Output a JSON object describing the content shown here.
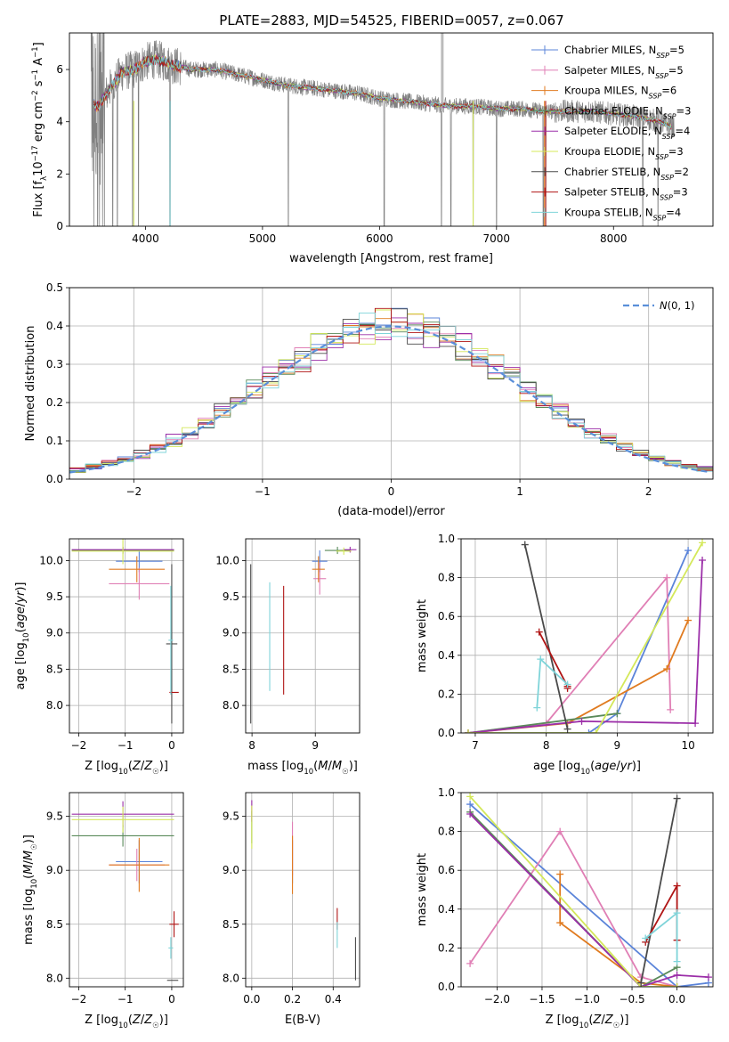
{
  "title": "PLATE=2883, MJD=54525, FIBERID=0057, z=0.067",
  "colors": {
    "chabrier_miles": "#5b84d9",
    "salpeter_miles": "#e07fb5",
    "kroupa_miles": "#e07b20",
    "chabrier_elodie": "#5a8a5a",
    "salpeter_elodie": "#9b2ea8",
    "kroupa_elodie": "#d4e85a",
    "chabrier_stelib": "#4a4a4a",
    "salpeter_stelib": "#b01515",
    "kroupa_stelib": "#7fd4d9",
    "data": "#808080",
    "normal": "#5a8fd9",
    "grid": "#b0b0b0"
  },
  "chart_data": [
    {
      "id": "spectrum",
      "type": "line",
      "title": "PLATE=2883, MJD=54525, FIBERID=0057, z=0.067",
      "xlabel": "wavelength [Angstrom, rest frame]",
      "ylabel": "Flux [f_λ10^-17 erg cm^-2 s^-1 A^-1]",
      "xlim": [
        3350,
        8850
      ],
      "ylim": [
        0,
        7.4
      ],
      "xticks": [
        4000,
        5000,
        6000,
        7000,
        8000
      ],
      "yticks": [
        0,
        2,
        4,
        6
      ],
      "grid": false,
      "legend_position": "top-right",
      "legend": [
        "Chabrier MILES, N_SSP=5",
        "Salpeter MILES, N_SSP=5",
        "Kroupa MILES, N_SSP=6",
        "Chabrier ELODIE, N_SSP=3",
        "Salpeter ELODIE, N_SSP=4",
        "Kroupa ELODIE, N_SSP=3",
        "Chabrier STELIB, N_SSP=2",
        "Salpeter STELIB, N_SSP=3",
        "Kroupa STELIB, N_SSP=4"
      ],
      "continuum": [
        [
          3600,
          4.6
        ],
        [
          3700,
          5.3
        ],
        [
          3800,
          5.9
        ],
        [
          3900,
          6.0
        ],
        [
          4000,
          6.3
        ],
        [
          4100,
          6.4
        ],
        [
          4200,
          6.2
        ],
        [
          4400,
          6.0
        ],
        [
          4600,
          6.0
        ],
        [
          4800,
          5.8
        ],
        [
          5000,
          5.6
        ],
        [
          5200,
          5.4
        ],
        [
          5400,
          5.3
        ],
        [
          5600,
          5.2
        ],
        [
          5800,
          5.1
        ],
        [
          6000,
          4.9
        ],
        [
          6200,
          4.8
        ],
        [
          6400,
          4.7
        ],
        [
          6600,
          4.6
        ],
        [
          6800,
          4.6
        ],
        [
          7000,
          4.5
        ],
        [
          7200,
          4.5
        ],
        [
          7400,
          4.4
        ],
        [
          7600,
          4.4
        ],
        [
          7800,
          4.4
        ],
        [
          8000,
          4.3
        ],
        [
          8200,
          4.2
        ],
        [
          8400,
          4.0
        ],
        [
          8500,
          3.8
        ]
      ]
    },
    {
      "id": "residuals",
      "type": "histogram",
      "xlabel": "(data-model)/error",
      "ylabel": "Normed distribution",
      "xlim": [
        -2.5,
        2.5
      ],
      "ylim": [
        0,
        0.5
      ],
      "xticks": [
        -2,
        -1,
        0,
        1,
        2
      ],
      "yticks": [
        0.0,
        0.1,
        0.2,
        0.3,
        0.4,
        0.5
      ],
      "grid": true,
      "legend_position": "top-right",
      "legend": [
        "N(0,1)"
      ]
    },
    {
      "id": "age_vs_Z",
      "type": "errorbar",
      "xlabel": "Z [log10(Z/Z☉)]",
      "ylabel": "age [log10(age/yr)]",
      "xlim": [
        -2.2,
        0.25
      ],
      "ylim": [
        7.62,
        10.3
      ],
      "xticks": [
        -2,
        -1,
        0
      ],
      "yticks": [
        8.0,
        8.5,
        9.0,
        9.5,
        10.0
      ],
      "grid": true,
      "points": [
        {
          "series": "chabrier_miles",
          "x": -0.7,
          "y": 9.99,
          "xerr": 0.5,
          "yerr": 0.15
        },
        {
          "series": "salpeter_miles",
          "x": -0.7,
          "y": 9.68,
          "xerr": 0.65,
          "yerr": 0.22
        },
        {
          "series": "kroupa_miles",
          "x": -0.75,
          "y": 9.88,
          "xerr": 0.6,
          "yerr": 0.18
        },
        {
          "series": "chabrier_elodie",
          "x": -1.05,
          "y": 10.14,
          "xerr": 1.1,
          "yerr": 0.05
        },
        {
          "series": "salpeter_elodie",
          "x": -1.05,
          "y": 10.15,
          "xerr": 1.1,
          "yerr": 0.04
        },
        {
          "series": "kroupa_elodie",
          "x": -1.05,
          "y": 10.13,
          "xerr": 1.1,
          "yerr": 0.18
        },
        {
          "series": "chabrier_stelib",
          "x": 0.0,
          "y": 8.85,
          "xerr": 0.12,
          "yerr": 1.1
        },
        {
          "series": "salpeter_stelib",
          "x": 0.05,
          "y": 8.18,
          "xerr": 0.1,
          "yerr": 0.0
        },
        {
          "series": "kroupa_stelib",
          "x": -0.02,
          "y": 8.9,
          "xerr": 0.05,
          "yerr": 0.75
        }
      ]
    },
    {
      "id": "age_vs_mass",
      "type": "errorbar",
      "xlabel": "mass [log10(M/M☉)]",
      "xlim": [
        7.9,
        9.7
      ],
      "ylim": [
        7.62,
        10.3
      ],
      "xticks": [
        8,
        9
      ],
      "yticks": [
        8.0,
        8.5,
        9.0,
        9.5,
        10.0
      ],
      "grid": true,
      "points": [
        {
          "series": "chabrier_miles",
          "x": 9.07,
          "y": 9.99,
          "xerr": 0.12,
          "yerr": 0.15
        },
        {
          "series": "salpeter_miles",
          "x": 9.07,
          "y": 9.75,
          "xerr": 0.1,
          "yerr": 0.22
        },
        {
          "series": "kroupa_miles",
          "x": 9.05,
          "y": 9.88,
          "xerr": 0.1,
          "yerr": 0.18
        },
        {
          "series": "chabrier_elodie",
          "x": 9.35,
          "y": 10.14,
          "xerr": 0.2,
          "yerr": 0.05
        },
        {
          "series": "salpeter_elodie",
          "x": 9.55,
          "y": 10.15,
          "xerr": 0.1,
          "yerr": 0.04
        },
        {
          "series": "kroupa_elodie",
          "x": 9.45,
          "y": 10.13,
          "xerr": 0.12,
          "yerr": 0.05
        },
        {
          "series": "chabrier_stelib",
          "x": 7.98,
          "y": 8.85,
          "xerr": 0.0,
          "yerr": 1.1
        },
        {
          "series": "salpeter_stelib",
          "x": 8.5,
          "y": 8.9,
          "xerr": 0.0,
          "yerr": 0.75
        },
        {
          "series": "kroupa_stelib",
          "x": 8.28,
          "y": 8.95,
          "xerr": 0.0,
          "yerr": 0.75
        }
      ]
    },
    {
      "id": "weight_vs_age",
      "type": "line",
      "xlabel": "age [log10(age/yr)]",
      "ylabel": "mass weight",
      "xlim": [
        6.8,
        10.35
      ],
      "ylim": [
        0,
        1.0
      ],
      "xticks": [
        7,
        8,
        9,
        10
      ],
      "yticks": [
        0.0,
        0.2,
        0.4,
        0.6,
        0.8,
        1.0
      ],
      "grid": true,
      "series": [
        {
          "key": "chabrier_miles",
          "x": [
            6.9,
            8.6,
            9.0,
            10.0
          ],
          "y": [
            0.0,
            0.0,
            0.1,
            0.94
          ]
        },
        {
          "key": "salpeter_miles",
          "x": [
            6.9,
            8.0,
            9.7,
            9.75
          ],
          "y": [
            0.0,
            0.05,
            0.8,
            0.12
          ]
        },
        {
          "key": "kroupa_miles",
          "x": [
            6.9,
            8.3,
            9.7,
            10.0
          ],
          "y": [
            0.0,
            0.05,
            0.33,
            0.58
          ]
        },
        {
          "key": "chabrier_elodie",
          "x": [
            6.9,
            9.0
          ],
          "y": [
            0.0,
            0.1
          ]
        },
        {
          "key": "salpeter_elodie",
          "x": [
            6.9,
            8.5,
            10.1,
            10.2
          ],
          "y": [
            0.0,
            0.06,
            0.05,
            0.89
          ]
        },
        {
          "key": "kroupa_elodie",
          "x": [
            6.9,
            8.7,
            10.2
          ],
          "y": [
            0.0,
            0.0,
            0.98
          ]
        },
        {
          "key": "chabrier_stelib",
          "x": [
            7.7,
            8.3
          ],
          "y": [
            0.97,
            0.02
          ]
        },
        {
          "key": "salpeter_stelib",
          "x": [
            7.9,
            8.3,
            8.3
          ],
          "y": [
            0.52,
            0.24,
            0.23
          ]
        },
        {
          "key": "kroupa_stelib",
          "x": [
            7.87,
            7.92,
            8.3
          ],
          "y": [
            0.13,
            0.38,
            0.25
          ]
        }
      ]
    },
    {
      "id": "mass_vs_Z",
      "type": "errorbar",
      "xlabel": "Z [log10(Z/Z☉)]",
      "ylabel": "mass [log10(M/M☉)]",
      "xlim": [
        -2.2,
        0.25
      ],
      "ylim": [
        7.92,
        9.72
      ],
      "xticks": [
        -2,
        -1,
        0
      ],
      "yticks": [
        8.0,
        8.5,
        9.0,
        9.5
      ],
      "grid": true,
      "points": [
        {
          "series": "chabrier_miles",
          "x": -0.7,
          "y": 9.08,
          "xerr": 0.5,
          "yerr": 0.2
        },
        {
          "series": "salpeter_miles",
          "x": -0.75,
          "y": 9.05,
          "xerr": 0.6,
          "yerr": 0.15
        },
        {
          "series": "kroupa_miles",
          "x": -0.7,
          "y": 9.05,
          "xerr": 0.65,
          "yerr": 0.25
        },
        {
          "series": "chabrier_elodie",
          "x": -1.05,
          "y": 9.32,
          "xerr": 1.1,
          "yerr": 0.1
        },
        {
          "series": "salpeter_elodie",
          "x": -1.05,
          "y": 9.52,
          "xerr": 1.1,
          "yerr": 0.12
        },
        {
          "series": "kroupa_elodie",
          "x": -1.05,
          "y": 9.47,
          "xerr": 1.1,
          "yerr": 0.12
        },
        {
          "series": "chabrier_stelib",
          "x": 0.02,
          "y": 7.98,
          "xerr": 0.12,
          "yerr": 0.0
        },
        {
          "series": "salpeter_stelib",
          "x": 0.05,
          "y": 8.5,
          "xerr": 0.1,
          "yerr": 0.12
        },
        {
          "series": "kroupa_stelib",
          "x": -0.02,
          "y": 8.28,
          "xerr": 0.05,
          "yerr": 0.1
        }
      ]
    },
    {
      "id": "mass_vs_EBV",
      "type": "errorbar",
      "xlabel": "E(B-V)",
      "xlim": [
        -0.03,
        0.53
      ],
      "ylim": [
        7.92,
        9.72
      ],
      "xticks": [
        0.0,
        0.2,
        0.4
      ],
      "yticks": [
        8.0,
        8.5,
        9.0,
        9.5
      ],
      "grid": true,
      "points": [
        {
          "series": "chabrier_miles",
          "x": 0.2,
          "y": 9.08,
          "xerr": 0.0,
          "yerr": 0.2
        },
        {
          "series": "salpeter_miles",
          "x": 0.2,
          "y": 9.2,
          "xerr": 0.0,
          "yerr": 0.25
        },
        {
          "series": "kroupa_miles",
          "x": 0.2,
          "y": 9.05,
          "xerr": 0.0,
          "yerr": 0.27
        },
        {
          "series": "chabrier_elodie",
          "x": 0.0,
          "y": 9.4,
          "xerr": 0.0,
          "yerr": 0.15
        },
        {
          "series": "salpeter_elodie",
          "x": 0.0,
          "y": 9.55,
          "xerr": 0.0,
          "yerr": 0.1
        },
        {
          "series": "kroupa_elodie",
          "x": 0.0,
          "y": 9.4,
          "xerr": 0.0,
          "yerr": 0.2
        },
        {
          "series": "chabrier_stelib",
          "x": 0.51,
          "y": 8.18,
          "xerr": 0.0,
          "yerr": 0.2
        },
        {
          "series": "salpeter_stelib",
          "x": 0.42,
          "y": 8.55,
          "xerr": 0.0,
          "yerr": 0.1
        },
        {
          "series": "kroupa_stelib",
          "x": 0.42,
          "y": 8.4,
          "xerr": 0.0,
          "yerr": 0.12
        }
      ]
    },
    {
      "id": "weight_vs_Z",
      "type": "line",
      "xlabel": "Z [log10(Z/Z☉)]",
      "ylabel": "mass weight",
      "xlim": [
        -2.4,
        0.4
      ],
      "ylim": [
        0,
        1.0
      ],
      "xticks": [
        -2.0,
        -1.5,
        -1.0,
        -0.5,
        0.0
      ],
      "yticks": [
        0.0,
        0.2,
        0.4,
        0.6,
        0.8,
        1.0
      ],
      "grid": true,
      "series": [
        {
          "key": "chabrier_miles",
          "x": [
            -2.3,
            0.0,
            0.35
          ],
          "y": [
            0.94,
            0.0,
            0.02
          ]
        },
        {
          "key": "salpeter_miles",
          "x": [
            -2.3,
            -1.3,
            -0.4,
            0.0
          ],
          "y": [
            0.12,
            0.8,
            0.05,
            0.0
          ]
        },
        {
          "key": "kroupa_miles",
          "x": [
            -1.3,
            -1.3,
            -0.4,
            0.0
          ],
          "y": [
            0.58,
            0.33,
            0.02,
            0.0
          ]
        },
        {
          "key": "chabrier_elodie",
          "x": [
            -2.3,
            -0.4,
            0.0
          ],
          "y": [
            0.9,
            0.0,
            0.1
          ]
        },
        {
          "key": "salpeter_elodie",
          "x": [
            -2.3,
            -0.4,
            0.0,
            0.35
          ],
          "y": [
            0.89,
            0.0,
            0.06,
            0.05
          ]
        },
        {
          "key": "kroupa_elodie",
          "x": [
            -2.3,
            -0.4,
            0.0
          ],
          "y": [
            0.98,
            0.0,
            0.0
          ]
        },
        {
          "key": "chabrier_stelib",
          "x": [
            -0.4,
            0.0
          ],
          "y": [
            0.02,
            0.97
          ]
        },
        {
          "key": "salpeter_stelib",
          "x": [
            -0.35,
            0.0,
            0.0
          ],
          "y": [
            0.23,
            0.52,
            0.24
          ]
        },
        {
          "key": "kroupa_stelib",
          "x": [
            -0.35,
            0.0,
            0.0
          ],
          "y": [
            0.25,
            0.38,
            0.13
          ]
        }
      ]
    }
  ]
}
